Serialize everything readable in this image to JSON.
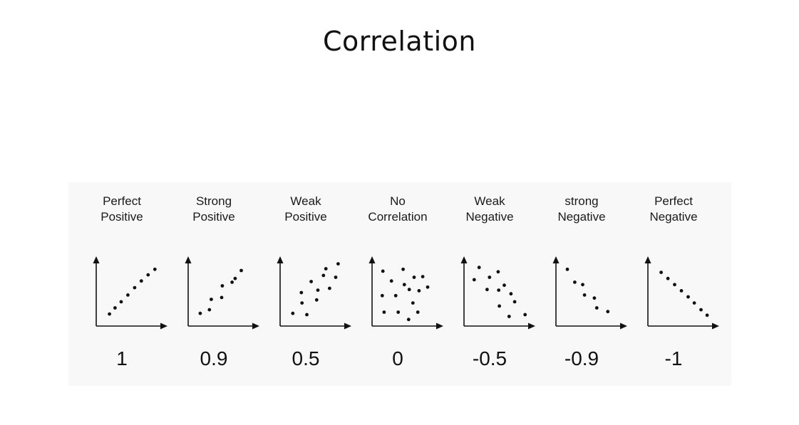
{
  "title": "Correlation",
  "plots": [
    {
      "caption": [
        "Perfect",
        "Positive"
      ],
      "coefficient": "1",
      "points": [
        [
          0.17,
          0.15
        ],
        [
          0.26,
          0.25
        ],
        [
          0.36,
          0.35
        ],
        [
          0.47,
          0.46
        ],
        [
          0.58,
          0.58
        ],
        [
          0.69,
          0.69
        ],
        [
          0.8,
          0.79
        ],
        [
          0.91,
          0.88
        ]
      ]
    },
    {
      "caption": [
        "Strong",
        "Positive"
      ],
      "coefficient": "0.9",
      "points": [
        [
          0.15,
          0.16
        ],
        [
          0.3,
          0.22
        ],
        [
          0.33,
          0.39
        ],
        [
          0.5,
          0.42
        ],
        [
          0.51,
          0.61
        ],
        [
          0.67,
          0.67
        ],
        [
          0.72,
          0.73
        ],
        [
          0.82,
          0.86
        ]
      ]
    },
    {
      "caption": [
        "Weak",
        "Positive"
      ],
      "coefficient": "0.5",
      "points": [
        [
          0.16,
          0.16
        ],
        [
          0.31,
          0.33
        ],
        [
          0.39,
          0.14
        ],
        [
          0.3,
          0.5
        ],
        [
          0.46,
          0.68
        ],
        [
          0.55,
          0.38
        ],
        [
          0.57,
          0.54
        ],
        [
          0.66,
          0.78
        ],
        [
          0.76,
          0.57
        ],
        [
          0.7,
          0.89
        ],
        [
          0.86,
          0.75
        ],
        [
          0.9,
          0.97
        ]
      ]
    },
    {
      "caption": [
        "No",
        "Correlation"
      ],
      "coefficient": "0",
      "points": [
        [
          0.13,
          0.85
        ],
        [
          0.27,
          0.69
        ],
        [
          0.46,
          0.88
        ],
        [
          0.48,
          0.63
        ],
        [
          0.64,
          0.75
        ],
        [
          0.78,
          0.76
        ],
        [
          0.12,
          0.45
        ],
        [
          0.34,
          0.45
        ],
        [
          0.56,
          0.55
        ],
        [
          0.72,
          0.53
        ],
        [
          0.86,
          0.59
        ],
        [
          0.15,
          0.18
        ],
        [
          0.38,
          0.18
        ],
        [
          0.55,
          0.06
        ],
        [
          0.7,
          0.18
        ],
        [
          0.62,
          0.33
        ]
      ]
    },
    {
      "caption": [
        "Weak",
        "Negative"
      ],
      "coefficient": "-0.5",
      "points": [
        [
          0.2,
          0.91
        ],
        [
          0.12,
          0.71
        ],
        [
          0.37,
          0.75
        ],
        [
          0.51,
          0.84
        ],
        [
          0.61,
          0.62
        ],
        [
          0.33,
          0.55
        ],
        [
          0.52,
          0.54
        ],
        [
          0.72,
          0.48
        ],
        [
          0.53,
          0.28
        ],
        [
          0.78,
          0.35
        ],
        [
          0.69,
          0.11
        ],
        [
          0.95,
          0.14
        ]
      ]
    },
    {
      "caption": [
        "strong",
        "Negative"
      ],
      "coefficient": "-0.9",
      "points": [
        [
          0.14,
          0.88
        ],
        [
          0.26,
          0.67
        ],
        [
          0.39,
          0.63
        ],
        [
          0.42,
          0.46
        ],
        [
          0.58,
          0.41
        ],
        [
          0.62,
          0.25
        ],
        [
          0.8,
          0.19
        ]
      ]
    },
    {
      "caption": [
        "Perfect",
        "Negative"
      ],
      "coefficient": "-1",
      "points": [
        [
          0.17,
          0.83
        ],
        [
          0.28,
          0.73
        ],
        [
          0.39,
          0.63
        ],
        [
          0.5,
          0.53
        ],
        [
          0.61,
          0.43
        ],
        [
          0.71,
          0.33
        ],
        [
          0.82,
          0.22
        ],
        [
          0.92,
          0.13
        ]
      ]
    }
  ]
}
